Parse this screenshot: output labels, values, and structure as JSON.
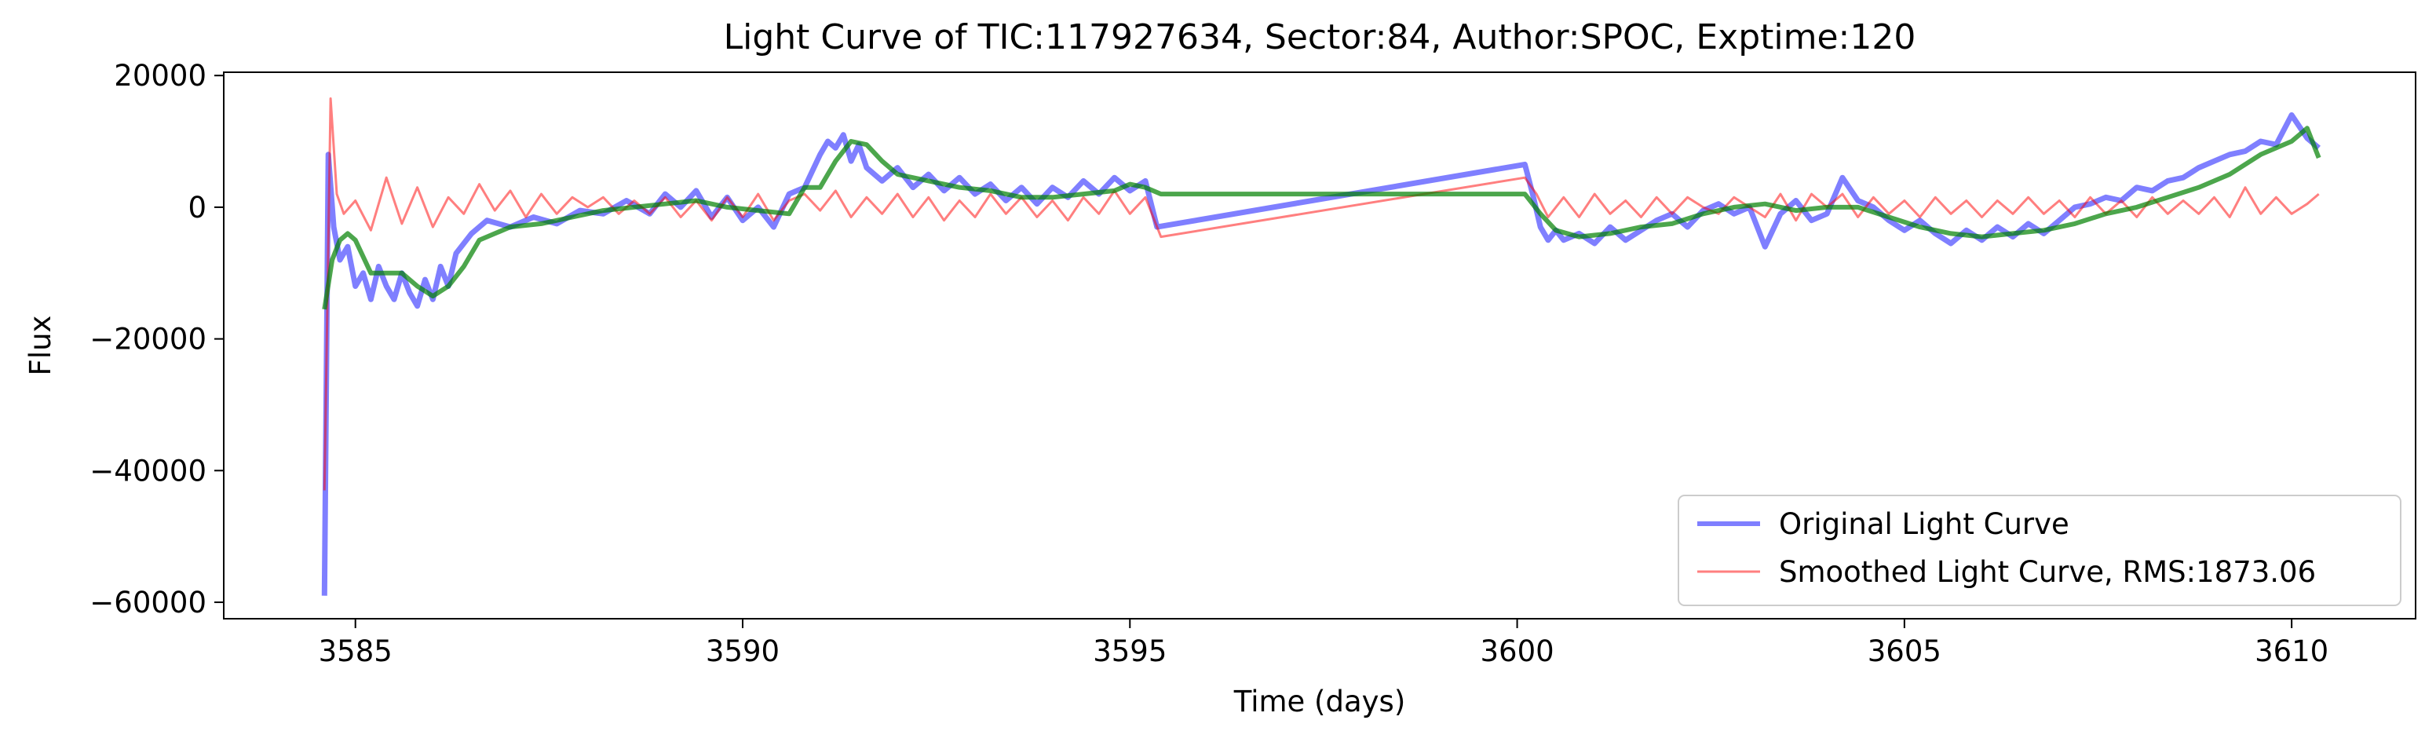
{
  "chart_data": {
    "type": "line",
    "title": "Light Curve of TIC:117927634, Sector:84, Author:SPOC, Exptime:120",
    "xlabel": "Time (days)",
    "ylabel": "Flux",
    "xlim": [
      3583.3,
      3611.6
    ],
    "ylim": [
      -62500,
      20500
    ],
    "xticks": [
      3585,
      3590,
      3595,
      3600,
      3605,
      3610
    ],
    "yticks": [
      20000,
      0,
      -20000,
      -40000,
      -60000
    ],
    "grid": false,
    "legend_position": "lower-right",
    "series": [
      {
        "name": "Original Light Curve",
        "color": "#0000ff",
        "alpha": 0.5,
        "x": [
          3584.6,
          3584.65,
          3584.72,
          3584.8,
          3584.9,
          3585.0,
          3585.1,
          3585.2,
          3585.3,
          3585.4,
          3585.5,
          3585.6,
          3585.7,
          3585.8,
          3585.9,
          3586.0,
          3586.1,
          3586.2,
          3586.3,
          3586.5,
          3586.7,
          3587.0,
          3587.3,
          3587.6,
          3587.9,
          3588.2,
          3588.5,
          3588.8,
          3589.0,
          3589.2,
          3589.4,
          3589.6,
          3589.8,
          3590.0,
          3590.2,
          3590.4,
          3590.6,
          3590.8,
          3591.0,
          3591.1,
          3591.2,
          3591.3,
          3591.4,
          3591.5,
          3591.6,
          3591.8,
          3592.0,
          3592.2,
          3592.4,
          3592.6,
          3592.8,
          3593.0,
          3593.2,
          3593.4,
          3593.6,
          3593.8,
          3594.0,
          3594.2,
          3594.4,
          3594.6,
          3594.8,
          3595.0,
          3595.2,
          3595.35,
          3600.1,
          3600.2,
          3600.3,
          3600.4,
          3600.5,
          3600.6,
          3600.8,
          3601.0,
          3601.2,
          3601.4,
          3601.6,
          3601.8,
          3602.0,
          3602.2,
          3602.4,
          3602.6,
          3602.8,
          3603.0,
          3603.2,
          3603.4,
          3603.6,
          3603.8,
          3604.0,
          3604.2,
          3604.4,
          3604.6,
          3604.8,
          3605.0,
          3605.2,
          3605.4,
          3605.6,
          3605.8,
          3606.0,
          3606.2,
          3606.4,
          3606.6,
          3606.8,
          3607.0,
          3607.2,
          3607.4,
          3607.6,
          3607.8,
          3608.0,
          3608.2,
          3608.4,
          3608.6,
          3608.8,
          3609.0,
          3609.2,
          3609.4,
          3609.6,
          3609.8,
          3610.0,
          3610.2,
          3610.35
        ],
        "y": [
          -59000,
          8000,
          -3000,
          -8000,
          -6000,
          -12000,
          -10000,
          -14000,
          -9000,
          -12000,
          -14000,
          -10000,
          -13000,
          -15000,
          -11000,
          -14000,
          -9000,
          -12000,
          -7000,
          -4000,
          -2000,
          -3000,
          -1500,
          -2500,
          -500,
          -1000,
          1000,
          -1000,
          2000,
          0,
          2500,
          -1500,
          1500,
          -2000,
          0,
          -3000,
          2000,
          3000,
          8000,
          10000,
          9000,
          11000,
          7000,
          9500,
          6000,
          4000,
          6000,
          3000,
          5000,
          2500,
          4500,
          2000,
          3500,
          1000,
          3000,
          500,
          3000,
          1500,
          4000,
          2000,
          4500,
          2500,
          4000,
          -3000,
          6500,
          2000,
          -3000,
          -5000,
          -3500,
          -5000,
          -4000,
          -5500,
          -3000,
          -5000,
          -3500,
          -2000,
          -1000,
          -3000,
          -500,
          500,
          -1000,
          0,
          -6000,
          -1000,
          1000,
          -2000,
          -1000,
          4500,
          1000,
          0,
          -2000,
          -3500,
          -2000,
          -4000,
          -5500,
          -3500,
          -5000,
          -3000,
          -4500,
          -2500,
          -4000,
          -2000,
          0,
          500,
          1500,
          1000,
          3000,
          2500,
          4000,
          4500,
          6000,
          7000,
          8000,
          8500,
          10000,
          9500,
          14000,
          10500,
          9000
        ]
      },
      {
        "name": "Smoothed Light Curve, RMS:1873.06",
        "color": "#ff0000",
        "alpha": 0.5,
        "x": [
          3584.6,
          3584.68,
          3584.76,
          3584.85,
          3585.0,
          3585.2,
          3585.4,
          3585.6,
          3585.8,
          3586.0,
          3586.2,
          3586.4,
          3586.6,
          3586.8,
          3587.0,
          3587.2,
          3587.4,
          3587.6,
          3587.8,
          3588.0,
          3588.2,
          3588.4,
          3588.6,
          3588.8,
          3589.0,
          3589.2,
          3589.4,
          3589.6,
          3589.8,
          3590.0,
          3590.2,
          3590.4,
          3590.6,
          3590.8,
          3591.0,
          3591.2,
          3591.4,
          3591.6,
          3591.8,
          3592.0,
          3592.2,
          3592.4,
          3592.6,
          3592.8,
          3593.0,
          3593.2,
          3593.4,
          3593.6,
          3593.8,
          3594.0,
          3594.2,
          3594.4,
          3594.6,
          3594.8,
          3595.0,
          3595.2,
          3595.4,
          3600.1,
          3600.25,
          3600.4,
          3600.6,
          3600.8,
          3601.0,
          3601.2,
          3601.4,
          3601.6,
          3601.8,
          3602.0,
          3602.2,
          3602.4,
          3602.6,
          3602.8,
          3603.0,
          3603.2,
          3603.4,
          3603.6,
          3603.8,
          3604.0,
          3604.2,
          3604.4,
          3604.6,
          3604.8,
          3605.0,
          3605.2,
          3605.4,
          3605.6,
          3605.8,
          3606.0,
          3606.2,
          3606.4,
          3606.6,
          3606.8,
          3607.0,
          3607.2,
          3607.4,
          3607.6,
          3607.8,
          3608.0,
          3608.2,
          3608.4,
          3608.6,
          3608.8,
          3609.0,
          3609.2,
          3609.4,
          3609.6,
          3609.8,
          3610.0,
          3610.2,
          3610.35
        ],
        "y": [
          -43000,
          16500,
          2000,
          -1000,
          1000,
          -3500,
          4500,
          -2500,
          3000,
          -3000,
          1500,
          -1000,
          3500,
          -500,
          2500,
          -1500,
          2000,
          -1000,
          1500,
          0,
          1500,
          -1000,
          1000,
          -1000,
          1500,
          -1500,
          1000,
          -2000,
          1500,
          -1500,
          2000,
          -2000,
          1000,
          2000,
          -500,
          2500,
          -1500,
          1500,
          -1000,
          2000,
          -1500,
          1500,
          -2000,
          1000,
          -1500,
          2000,
          -1000,
          1500,
          -1500,
          1000,
          -2000,
          1500,
          -1000,
          2500,
          -1000,
          1500,
          -4500,
          4500,
          2000,
          -1500,
          1500,
          -1500,
          2000,
          -1000,
          1000,
          -1500,
          1500,
          -1000,
          1500,
          0,
          -1000,
          1500,
          0,
          -1500,
          2000,
          -2000,
          2000,
          0,
          2000,
          -1500,
          1500,
          -1000,
          1000,
          -1500,
          1500,
          -1000,
          1000,
          -1500,
          1000,
          -1000,
          1500,
          -1000,
          1000,
          -1500,
          1500,
          -1000,
          1000,
          -1500,
          1500,
          -1000,
          1000,
          -1000,
          1500,
          -1500,
          3000,
          -1000,
          1500,
          -1000,
          500,
          2000
        ]
      },
      {
        "name": "",
        "color": "#008000",
        "alpha": 0.7,
        "x": [
          3584.6,
          3584.7,
          3584.8,
          3584.9,
          3585.0,
          3585.2,
          3585.4,
          3585.6,
          3585.8,
          3586.0,
          3586.2,
          3586.4,
          3586.6,
          3587.0,
          3587.4,
          3587.8,
          3588.2,
          3588.6,
          3589.0,
          3589.4,
          3589.8,
          3590.2,
          3590.6,
          3590.8,
          3591.0,
          3591.2,
          3591.4,
          3591.6,
          3591.8,
          3592.0,
          3592.4,
          3592.8,
          3593.2,
          3593.6,
          3594.0,
          3594.4,
          3594.8,
          3595.0,
          3595.2,
          3595.4,
          3600.1,
          3600.3,
          3600.5,
          3600.8,
          3601.2,
          3601.6,
          3602.0,
          3602.4,
          3602.8,
          3603.2,
          3603.6,
          3604.0,
          3604.4,
          3604.8,
          3605.2,
          3605.6,
          3606.0,
          3606.4,
          3606.8,
          3607.2,
          3607.6,
          3608.0,
          3608.4,
          3608.8,
          3609.2,
          3609.6,
          3610.0,
          3610.2,
          3610.35
        ],
        "y": [
          -15500,
          -8000,
          -5000,
          -4000,
          -5000,
          -10000,
          -10000,
          -10000,
          -12000,
          -13500,
          -12000,
          -9000,
          -5000,
          -3000,
          -2500,
          -1500,
          -500,
          0,
          500,
          1000,
          0,
          -500,
          -1000,
          3000,
          3000,
          7000,
          10000,
          9500,
          7000,
          5000,
          4000,
          3000,
          2500,
          1500,
          1500,
          2000,
          2500,
          3500,
          3000,
          2000,
          2000,
          -1000,
          -3500,
          -4500,
          -4000,
          -3000,
          -2500,
          -1000,
          0,
          500,
          -500,
          0,
          0,
          -1500,
          -3000,
          -4000,
          -4500,
          -4000,
          -3500,
          -2500,
          -1000,
          0,
          1500,
          3000,
          5000,
          8000,
          10000,
          12000,
          7500
        ]
      }
    ]
  }
}
